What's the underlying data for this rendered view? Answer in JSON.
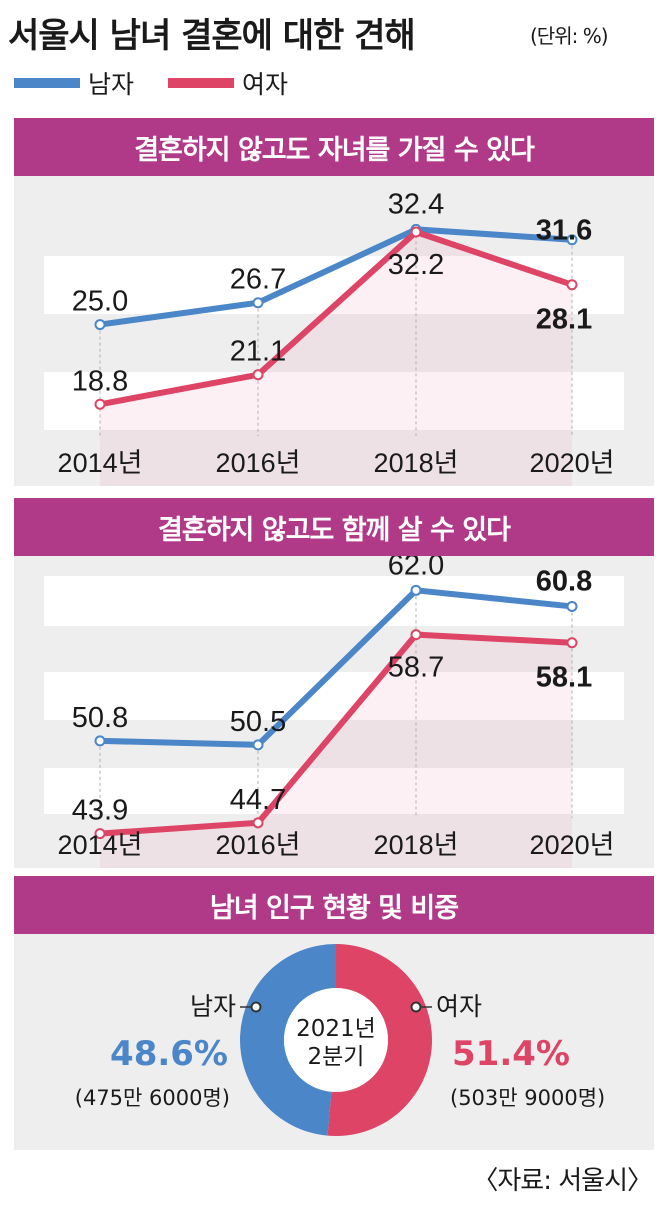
{
  "title": "서울시 남녀 결혼에 대한 견해",
  "unit": "(단위: %)",
  "legend": {
    "male": "남자",
    "female": "여자"
  },
  "colors": {
    "male": "#4a86c8",
    "female": "#dd4466",
    "header": "#b03a88",
    "panel": "#eeeeee"
  },
  "chart_data": [
    {
      "type": "line",
      "title": "결혼하지 않고도 자녀를 가질 수 있다",
      "categories": [
        "2014년",
        "2016년",
        "2018년",
        "2020년"
      ],
      "series": [
        {
          "name": "남자",
          "values": [
            25.0,
            26.7,
            32.4,
            31.6
          ],
          "labels": [
            "25.0",
            "26.7",
            "32.4",
            "31.6"
          ]
        },
        {
          "name": "여자",
          "values": [
            18.8,
            21.1,
            32.2,
            28.1
          ],
          "labels": [
            "18.8",
            "21.1",
            "32.2",
            "28.1"
          ]
        }
      ],
      "ylim": [
        14.0,
        35.0
      ]
    },
    {
      "type": "line",
      "title": "결혼하지 않고도 함께 살 수 있다",
      "categories": [
        "2014년",
        "2016년",
        "2018년",
        "2020년"
      ],
      "series": [
        {
          "name": "남자",
          "values": [
            50.8,
            50.5,
            62.0,
            60.8
          ],
          "labels": [
            "50.8",
            "50.5",
            "62.0",
            "60.8"
          ]
        },
        {
          "name": "여자",
          "values": [
            43.9,
            44.7,
            58.7,
            58.1
          ],
          "labels": [
            "43.9",
            "44.7",
            "58.7",
            "58.1"
          ]
        }
      ],
      "ylim": [
        40.0,
        65.0
      ]
    },
    {
      "type": "pie",
      "title": "남녀 인구 현황 및 비중",
      "center_label": [
        "2021년",
        "2분기"
      ],
      "slices": [
        {
          "name": "남자",
          "value": 48.6,
          "label": "48.6%",
          "detail": "(475만 6000명)"
        },
        {
          "name": "여자",
          "value": 51.4,
          "label": "51.4%",
          "detail": "(503만 9000명)"
        }
      ]
    }
  ],
  "source": "〈자료: 서울시〉"
}
